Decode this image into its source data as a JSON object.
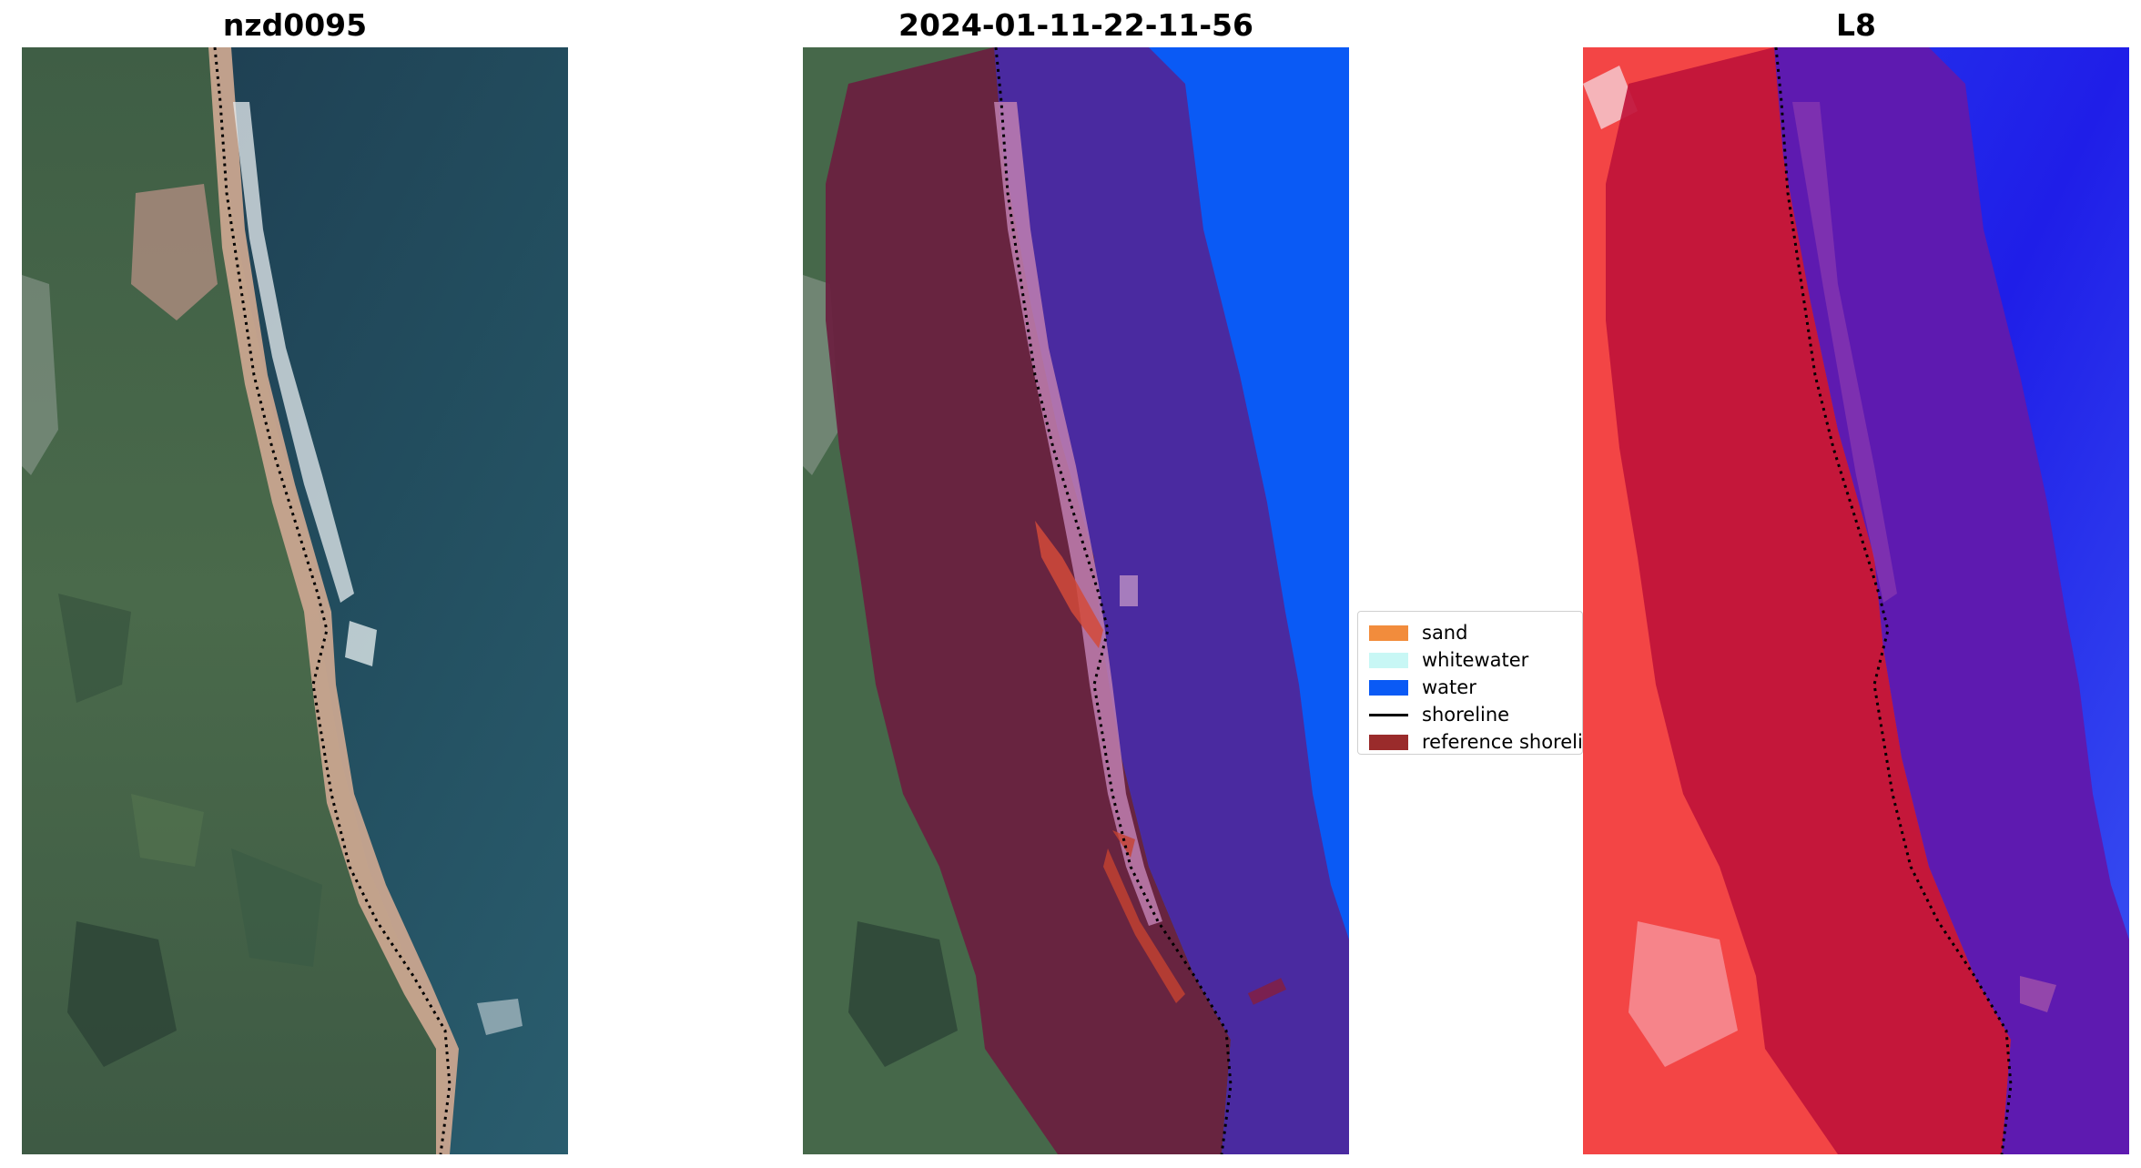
{
  "panels": [
    {
      "title": "nzd0095",
      "mode": "rgb"
    },
    {
      "title": "2024-01-11-22-11-56",
      "mode": "classified"
    },
    {
      "title": "L8",
      "mode": "mndwi"
    }
  ],
  "legend": {
    "entries": [
      {
        "label": "sand",
        "color": "#f28c3c",
        "kind": "patch"
      },
      {
        "label": "whitewater",
        "color": "#c8f7f5",
        "kind": "patch"
      },
      {
        "label": "water",
        "color": "#0a5af5",
        "kind": "patch"
      },
      {
        "label": "shoreline",
        "color": "#000000",
        "kind": "line"
      },
      {
        "label": "reference shoreline buffer",
        "color": "#9a2b2b",
        "kind": "patch"
      }
    ]
  },
  "colors": {
    "ocean": "#1f4a5c",
    "land": "#46684a",
    "classified_water": "#0a5af5",
    "buffer_overlay": "#6a1f3f",
    "buffer_water": "#4a2aa0",
    "index_land": "#f34545",
    "index_water": "#2a1de8",
    "index_buffer": "#c0143a",
    "index_buffer_water": "#5e1ab0"
  }
}
